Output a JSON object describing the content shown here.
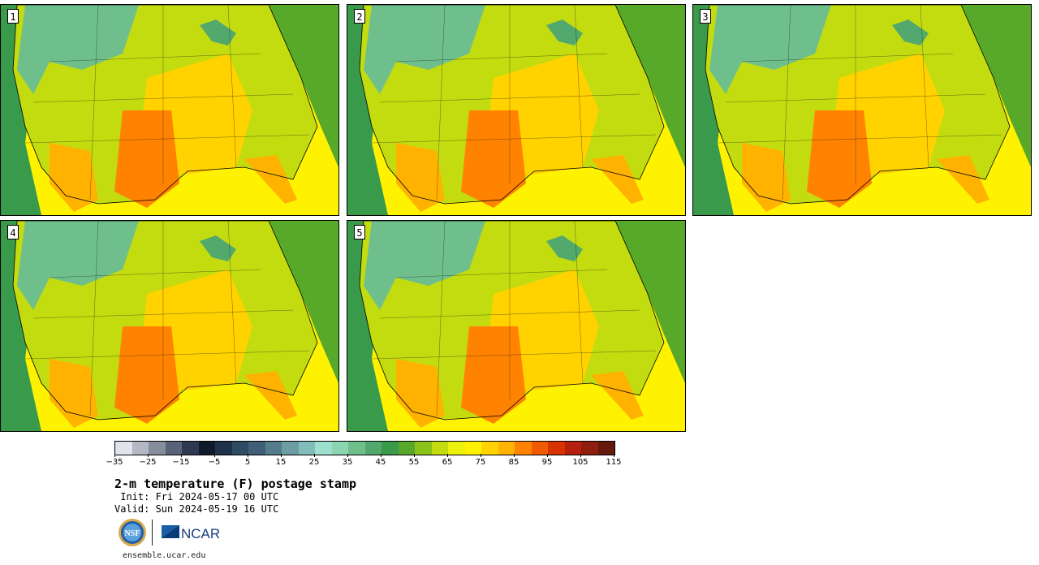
{
  "panels": [
    {
      "label": "1"
    },
    {
      "label": "2"
    },
    {
      "label": "3"
    },
    {
      "label": "4"
    },
    {
      "label": "5"
    }
  ],
  "colorbar": {
    "colors": [
      "#dfe3ea",
      "#b3b8c3",
      "#868d9c",
      "#5a6277",
      "#2d3950",
      "#101a2b",
      "#1d3149",
      "#2f4a63",
      "#3e5f77",
      "#557c8b",
      "#6c9da2",
      "#82bdb9",
      "#9ee0cf",
      "#8bd5b1",
      "#6fbf8d",
      "#53a86d",
      "#3a9a4c",
      "#58a82a",
      "#8cc31a",
      "#c3dc10",
      "#ecf20b",
      "#fff200",
      "#ffd200",
      "#ffb200",
      "#ff8200",
      "#f05a00",
      "#d73200",
      "#b52010",
      "#8e1e0e",
      "#661a0e"
    ],
    "tick_labels": [
      "−35",
      "−25",
      "−15",
      "−5",
      "5",
      "15",
      "25",
      "35",
      "45",
      "55",
      "65",
      "75",
      "85",
      "95",
      "105",
      "115"
    ]
  },
  "title": "2-m temperature (F) postage stamp",
  "init": " Init: Fri 2024-05-17 00 UTC",
  "valid": "Valid: Sun 2024-05-19 16 UTC",
  "logos": {
    "nsf": "NSF",
    "ncar": "NCAR"
  },
  "url": "ensemble.ucar.edu"
}
